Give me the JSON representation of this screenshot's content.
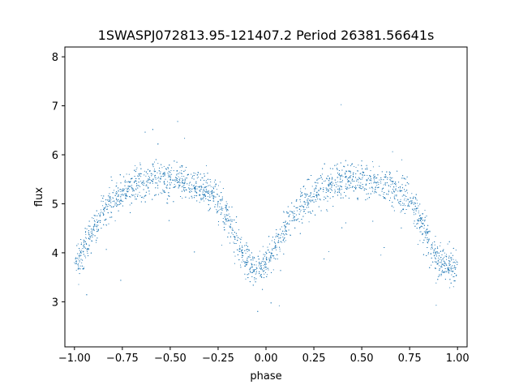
{
  "chart_data": {
    "type": "scatter",
    "title": "1SWASPJ072813.95-121407.2 Period 26381.56641s",
    "xlabel": "phase",
    "ylabel": "flux",
    "xlim": [
      -1.05,
      1.05
    ],
    "ylim": [
      2.08,
      8.2
    ],
    "xticks": [
      -1.0,
      -0.75,
      -0.5,
      -0.25,
      0.0,
      0.25,
      0.5,
      0.75,
      1.0
    ],
    "xtick_labels": [
      "−1.00",
      "−0.75",
      "−0.50",
      "−0.25",
      "0.00",
      "0.25",
      "0.50",
      "0.75",
      "1.00"
    ],
    "yticks": [
      3,
      4,
      5,
      6,
      7,
      8
    ],
    "ytick_labels": [
      "3",
      "4",
      "5",
      "6",
      "7",
      "8"
    ],
    "grid": false,
    "marker_color": "#1f77b4",
    "series": [
      {
        "x": [
          -1.0,
          -0.975,
          -0.95,
          -0.925,
          -0.9,
          -0.875,
          -0.85,
          -0.825,
          -0.8,
          -0.775,
          -0.75,
          -0.725,
          -0.7,
          -0.675,
          -0.65,
          -0.625,
          -0.6,
          -0.575,
          -0.55,
          -0.525,
          -0.5,
          -0.475,
          -0.45,
          -0.425,
          -0.4,
          -0.375,
          -0.35,
          -0.325,
          -0.3,
          -0.275,
          -0.25,
          -0.225,
          -0.2,
          -0.175,
          -0.15,
          -0.125,
          -0.1,
          -0.075,
          -0.05,
          -0.025,
          0.0,
          0.025,
          0.05,
          0.075,
          0.1,
          0.125,
          0.15,
          0.175,
          0.2,
          0.225,
          0.25,
          0.275,
          0.3,
          0.325,
          0.35,
          0.375,
          0.4,
          0.425,
          0.45,
          0.475,
          0.5,
          0.525,
          0.55,
          0.575,
          0.6,
          0.625,
          0.65,
          0.675,
          0.7,
          0.725,
          0.75,
          0.775,
          0.8,
          0.825,
          0.85,
          0.875,
          0.9,
          0.925,
          0.95,
          0.975,
          1.0
        ],
        "y": [
          3.8,
          3.9,
          4.1,
          4.3,
          4.5,
          4.65,
          4.8,
          4.95,
          5.05,
          5.15,
          5.2,
          5.28,
          5.33,
          5.38,
          5.42,
          5.45,
          5.48,
          5.5,
          5.5,
          5.5,
          5.5,
          5.49,
          5.47,
          5.44,
          5.42,
          5.38,
          5.35,
          5.3,
          5.25,
          5.17,
          5.05,
          4.9,
          4.7,
          4.5,
          4.25,
          4.0,
          3.85,
          3.75,
          3.7,
          3.68,
          3.7,
          3.9,
          4.1,
          4.3,
          4.5,
          4.65,
          4.8,
          4.95,
          5.05,
          5.15,
          5.2,
          5.28,
          5.33,
          5.38,
          5.42,
          5.45,
          5.48,
          5.5,
          5.5,
          5.5,
          5.5,
          5.49,
          5.47,
          5.44,
          5.42,
          5.38,
          5.35,
          5.3,
          5.25,
          5.17,
          5.05,
          4.9,
          4.7,
          4.5,
          4.25,
          4.0,
          3.85,
          3.75,
          3.7,
          3.68,
          3.8
        ]
      }
    ]
  }
}
